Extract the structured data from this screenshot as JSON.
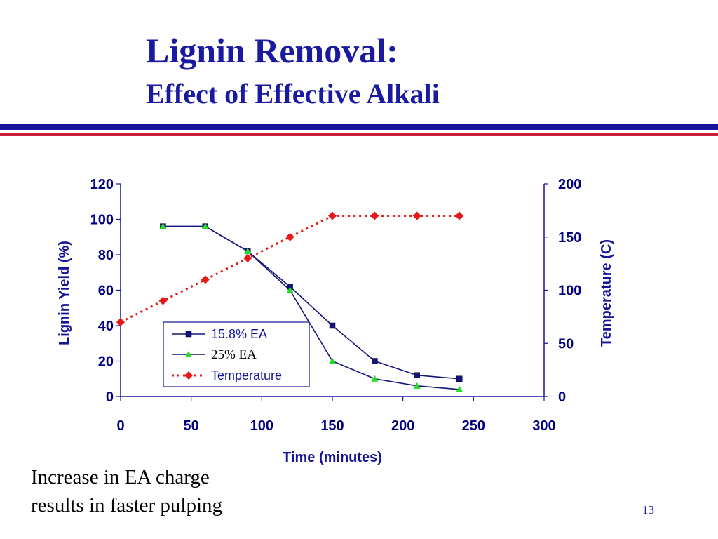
{
  "slide": {
    "title": "Lignin Removal:",
    "subtitle": "Effect of Effective Alkali",
    "caption_lines": [
      "Increase in EA charge",
      "results in faster pulping"
    ],
    "slide_number": "13"
  },
  "colors": {
    "title": "#1a1aa0",
    "rule_blue": "#14149a",
    "rule_red": "#c81e3c",
    "axis": "#14149a",
    "series_15_8": "#14147a",
    "series_25": "#22dd22",
    "temperature": "#e81818"
  },
  "chart_data": {
    "type": "line",
    "xlabel": "Time (minutes)",
    "ylabel": "Lignin Yield (%)",
    "y2label": "Temperature (C)",
    "xlim": [
      0,
      300
    ],
    "ylim": [
      0,
      120
    ],
    "y2lim": [
      0,
      200
    ],
    "xticks": [
      "0",
      "50",
      "100",
      "150",
      "200",
      "250",
      "300"
    ],
    "yticks": [
      "0",
      "20",
      "40",
      "60",
      "80",
      "100",
      "120"
    ],
    "y2ticks": [
      "0",
      "50",
      "100",
      "150",
      "200"
    ],
    "legend_position": "lower-left inside plot",
    "series": [
      {
        "name": "15.8% EA",
        "axis": "left",
        "marker": "square",
        "line": "solid",
        "x": [
          30,
          60,
          90,
          120,
          150,
          180,
          210,
          240
        ],
        "y": [
          96,
          96,
          82,
          62,
          40,
          20,
          12,
          10
        ]
      },
      {
        "name": "25% EA",
        "axis": "left",
        "marker": "triangle",
        "line": "solid",
        "x": [
          30,
          60,
          90,
          120,
          150,
          180,
          210,
          240
        ],
        "y": [
          96,
          96,
          82,
          60,
          20,
          10,
          6,
          4
        ]
      },
      {
        "name": "Temperature",
        "axis": "right",
        "marker": "diamond",
        "line": "dotted",
        "x": [
          0,
          30,
          60,
          90,
          120,
          150,
          180,
          210,
          240
        ],
        "y": [
          70,
          90,
          110,
          130,
          150,
          170,
          170,
          170,
          170
        ]
      }
    ]
  }
}
